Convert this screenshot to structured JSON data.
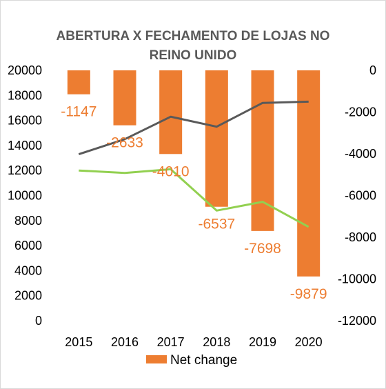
{
  "chart_data": {
    "type": "bar",
    "title_lines": [
      "ABERTURA X FECHAMENTO DE LOJAS NO",
      "REINO UNIDO"
    ],
    "categories": [
      "2015",
      "2016",
      "2017",
      "2018",
      "2019",
      "2020"
    ],
    "left_axis": {
      "ticks": [
        "0",
        "2000",
        "4000",
        "6000",
        "8000",
        "10000",
        "12000",
        "14000",
        "16000",
        "18000",
        "20000"
      ],
      "ylim": [
        0,
        20000
      ]
    },
    "right_axis": {
      "ticks": [
        "0",
        "-2000",
        "-4000",
        "-6000",
        "-8000",
        "-10000",
        "-12000"
      ],
      "ylim": [
        -12000,
        0
      ]
    },
    "series": [
      {
        "name": "Net change",
        "type": "bar",
        "axis": "right",
        "color": "#ED7D31",
        "values": [
          -1147,
          -2633,
          -4010,
          -6537,
          -7698,
          -9879
        ],
        "labels": [
          "-1147",
          "-2633",
          "-4010",
          "-6537",
          "-7698",
          "-9879"
        ]
      },
      {
        "type": "line",
        "axis": "left",
        "color": "#595959",
        "values": [
          13300,
          14500,
          16300,
          15500,
          17400,
          17500
        ]
      },
      {
        "type": "line",
        "axis": "left",
        "color": "#92D050",
        "values": [
          12000,
          11800,
          12100,
          8800,
          9500,
          7500
        ]
      }
    ],
    "legend": {
      "position": "bottom",
      "entries": [
        "Net change"
      ]
    },
    "grid": false
  }
}
